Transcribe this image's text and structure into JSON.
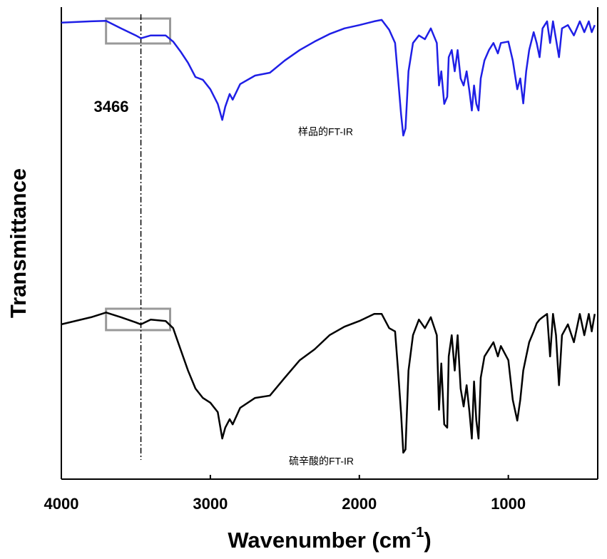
{
  "chart_data": {
    "type": "line",
    "xlabel": [
      "Wavenumber (cm",
      "-1",
      ")"
    ],
    "ylabel": "Transmittance",
    "xlim": [
      4000,
      400
    ],
    "xticks": [
      4000,
      3000,
      2000,
      1000
    ],
    "ylim": [
      0,
      100
    ],
    "vline": 3466,
    "highlight_x": [
      3700,
      3270
    ],
    "x": [
      4000,
      3800,
      3700,
      3600,
      3500,
      3466,
      3400,
      3300,
      3250,
      3200,
      3150,
      3100,
      3050,
      3000,
      2950,
      2920,
      2900,
      2870,
      2850,
      2800,
      2700,
      2600,
      2500,
      2400,
      2300,
      2200,
      2100,
      2000,
      1900,
      1850,
      1800,
      1760,
      1740,
      1720,
      1705,
      1690,
      1670,
      1640,
      1600,
      1560,
      1520,
      1480,
      1465,
      1450,
      1430,
      1410,
      1400,
      1380,
      1360,
      1340,
      1320,
      1300,
      1280,
      1260,
      1245,
      1230,
      1215,
      1200,
      1185,
      1160,
      1130,
      1100,
      1070,
      1050,
      1000,
      970,
      940,
      920,
      900,
      880,
      860,
      830,
      810,
      790,
      770,
      740,
      720,
      700,
      680,
      660,
      640,
      600,
      560,
      520,
      490,
      460,
      440,
      420
    ],
    "series": [
      {
        "name": "样品的FT-IR",
        "color": "#1f1fe6",
        "values": [
          96.7,
          97.0,
          97.1,
          95.5,
          94.0,
          93.4,
          94.0,
          94.0,
          92.7,
          90.6,
          88.2,
          85.2,
          84.6,
          82.6,
          79.5,
          76.1,
          78.9,
          81.6,
          80.4,
          83.7,
          85.5,
          86.1,
          88.7,
          90.9,
          92.7,
          94.3,
          95.5,
          96.2,
          97.0,
          97.3,
          95.2,
          92.4,
          84.9,
          77.3,
          72.8,
          74.3,
          86.4,
          92.4,
          94.0,
          93.2,
          95.5,
          92.4,
          83.4,
          86.4,
          79.5,
          81.0,
          89.4,
          90.9,
          86.4,
          90.9,
          84.9,
          83.4,
          86.4,
          81.9,
          78.1,
          83.4,
          79.5,
          78.1,
          84.9,
          88.7,
          90.9,
          92.4,
          90.2,
          92.4,
          92.7,
          88.7,
          82.6,
          84.9,
          79.6,
          86.4,
          90.9,
          94.7,
          92.4,
          89.4,
          95.5,
          97.0,
          92.4,
          97.0,
          93.2,
          89.4,
          95.5,
          96.2,
          94.0,
          97.0,
          94.7,
          97.0,
          94.7,
          96.2
        ]
      },
      {
        "name": "硫辛酸的FT-IR",
        "color": "#000000",
        "values": [
          32.8,
          34.3,
          35.3,
          34.3,
          33.2,
          32.8,
          33.8,
          33.5,
          32.0,
          27.5,
          23.0,
          19.2,
          17.2,
          16.2,
          14.2,
          8.6,
          10.9,
          12.7,
          11.6,
          15.1,
          17.2,
          17.7,
          21.5,
          25.2,
          27.5,
          30.5,
          32.3,
          33.5,
          35.0,
          35.0,
          32.0,
          31.3,
          23.0,
          13.9,
          5.6,
          6.3,
          23.0,
          30.5,
          33.8,
          32.0,
          34.3,
          30.5,
          14.7,
          24.5,
          11.6,
          10.9,
          26.0,
          30.5,
          23.0,
          30.5,
          19.2,
          15.4,
          19.9,
          13.9,
          8.6,
          20.7,
          12.4,
          8.6,
          21.5,
          26.0,
          27.5,
          29.0,
          26.0,
          28.2,
          25.2,
          16.8,
          12.4,
          16.8,
          23.0,
          26.0,
          29.0,
          31.3,
          33.0,
          33.8,
          34.3,
          35.0,
          26.0,
          35.0,
          30.5,
          19.9,
          30.5,
          32.8,
          29.0,
          35.0,
          30.5,
          35.0,
          31.3,
          35.0
        ]
      }
    ]
  }
}
